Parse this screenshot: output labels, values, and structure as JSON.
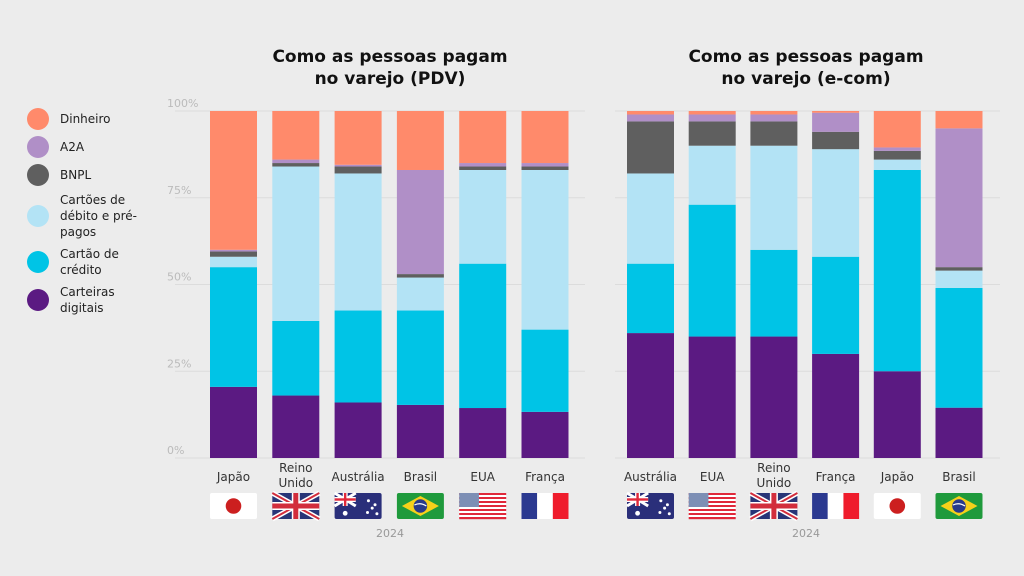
{
  "chart_data": [
    {
      "type": "bar",
      "stacked": true,
      "title": "Como as pessoas pagam no varejo (PDV)",
      "title_lines": [
        "Como as pessoas pagam",
        "no varejo (PDV)"
      ],
      "xlabel": "2024",
      "ylabel": "",
      "ylim": [
        0,
        100
      ],
      "yticks": [
        "0%",
        "25%",
        "50%",
        "75%",
        "100%"
      ],
      "grid": true,
      "categories": [
        "Japão",
        "Reino Unido",
        "Austrália",
        "Brasil",
        "EUA",
        "França"
      ],
      "category_lines": [
        [
          "Japão"
        ],
        [
          "Reino",
          "Unido"
        ],
        [
          "Austrália"
        ],
        [
          "Brasil"
        ],
        [
          "EUA"
        ],
        [
          "França"
        ]
      ],
      "flags": [
        "jp",
        "uk",
        "au",
        "br",
        "us",
        "fr"
      ],
      "series": [
        {
          "name": "Carteiras digitais",
          "values": [
            20.5,
            18,
            16,
            15.3,
            14.4,
            13.3
          ]
        },
        {
          "name": "Cartão de crédito",
          "values": [
            34.5,
            21.5,
            26.5,
            27.2,
            41.6,
            23.7
          ]
        },
        {
          "name": "Cartões de débito e pré-pagos",
          "values": [
            3,
            44.5,
            39.5,
            9.5,
            27,
            46
          ]
        },
        {
          "name": "BNPL",
          "values": [
            1.5,
            1,
            2,
            1,
            1,
            1
          ]
        },
        {
          "name": "A2A",
          "values": [
            0.5,
            1,
            0.5,
            30,
            1,
            1
          ]
        },
        {
          "name": "Dinheiro",
          "values": [
            40,
            14,
            15.5,
            17,
            15,
            15
          ]
        }
      ]
    },
    {
      "type": "bar",
      "stacked": true,
      "title": "Como as pessoas pagam no varejo (e-com)",
      "title_lines": [
        "Como as pessoas pagam",
        "no varejo (e-com)"
      ],
      "xlabel": "2024",
      "ylabel": "",
      "ylim": [
        0,
        100
      ],
      "grid": true,
      "categories": [
        "Austrália",
        "EUA",
        "Reino Unido",
        "França",
        "Japão",
        "Brasil"
      ],
      "category_lines": [
        [
          "Austrália"
        ],
        [
          "EUA"
        ],
        [
          "Reino",
          "Unido"
        ],
        [
          "França"
        ],
        [
          "Japão"
        ],
        [
          "Brasil"
        ]
      ],
      "flags": [
        "au",
        "us",
        "uk",
        "fr",
        "jp",
        "br"
      ],
      "series": [
        {
          "name": "Carteiras digitais",
          "values": [
            36,
            35,
            35,
            30,
            25,
            14.5
          ]
        },
        {
          "name": "Cartão de crédito",
          "values": [
            20,
            38,
            25,
            28,
            58,
            34.5
          ]
        },
        {
          "name": "Cartões de débito e pré-pagos",
          "values": [
            26,
            17,
            30,
            31,
            3,
            5
          ]
        },
        {
          "name": "BNPL",
          "values": [
            15,
            7,
            7,
            5,
            2.5,
            1
          ]
        },
        {
          "name": "A2A",
          "values": [
            2,
            2,
            2,
            5.5,
            1,
            40
          ]
        },
        {
          "name": "Dinheiro",
          "values": [
            1,
            1,
            1,
            0.5,
            10.5,
            5
          ]
        }
      ]
    }
  ],
  "legend": [
    {
      "label": "Dinheiro",
      "color": "#ff8a6b"
    },
    {
      "label": "A2A",
      "color": "#b08fc7"
    },
    {
      "label": "BNPL",
      "color": "#5f5f5f"
    },
    {
      "label": "Cartões de débito e pré-pagos",
      "color": "#b3e3f5"
    },
    {
      "label": "Cartão de crédito",
      "color": "#00c4e6"
    },
    {
      "label": "Carteiras digitais",
      "color": "#5b1a82"
    }
  ],
  "series_colors": {
    "Dinheiro": "#ff8a6b",
    "A2A": "#b08fc7",
    "BNPL": "#5f5f5f",
    "Cartões de débito e pré-pagos": "#b3e3f5",
    "Cartão de crédito": "#00c4e6",
    "Carteiras digitais": "#5b1a82"
  }
}
